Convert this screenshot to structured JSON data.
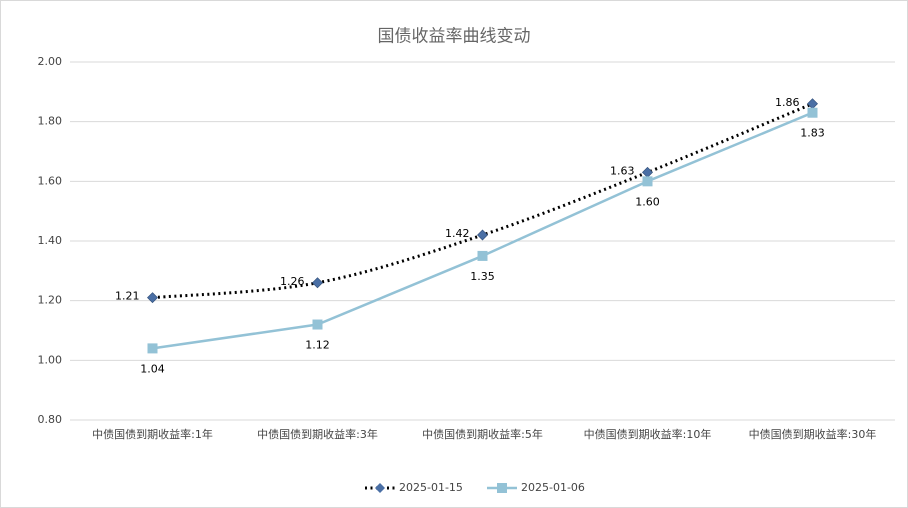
{
  "chart_data": {
    "type": "line",
    "title": "国债收益率曲线变动",
    "categories": [
      "中债国债到期收益率:1年",
      "中债国债到期收益率:3年",
      "中债国债到期收益率:5年",
      "中债国债到期收益率:10年",
      "中债国债到期收益率:30年"
    ],
    "series": [
      {
        "name": "2025-01-15",
        "color": "#4a6fa5",
        "line_color": "#000000",
        "dash": "dotted",
        "marker": "diamond",
        "values": [
          1.21,
          1.26,
          1.42,
          1.63,
          1.86
        ],
        "value_labels": [
          "1.21",
          "1.26",
          "1.42",
          "1.63",
          "1.86"
        ]
      },
      {
        "name": "2025-01-06",
        "color": "#93c2d6",
        "line_color": "#93c2d6",
        "dash": "solid",
        "marker": "square",
        "values": [
          1.04,
          1.12,
          1.35,
          1.6,
          1.83
        ],
        "value_labels": [
          "1.04",
          "1.12",
          "1.35",
          "1.60",
          "1.83"
        ]
      }
    ],
    "ylim": [
      0.8,
      2.0
    ],
    "yticks": [
      {
        "value": 0.8,
        "label": "0.80"
      },
      {
        "value": 1.0,
        "label": "1.00"
      },
      {
        "value": 1.2,
        "label": "1.20"
      },
      {
        "value": 1.4,
        "label": "1.40"
      },
      {
        "value": 1.6,
        "label": "1.60"
      },
      {
        "value": 1.8,
        "label": "1.80"
      },
      {
        "value": 2.0,
        "label": "2.00"
      }
    ],
    "grid": true,
    "legend": "bottom"
  }
}
